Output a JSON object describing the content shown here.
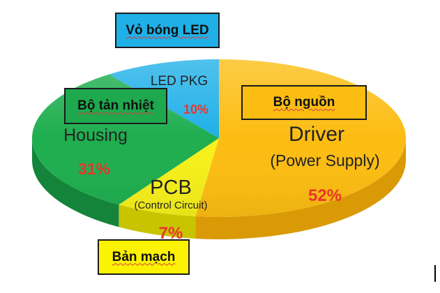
{
  "chart_data": {
    "type": "pie",
    "title": "",
    "slices": [
      {
        "label": "Driver",
        "sublabel": "(Power Supply)",
        "value": 52,
        "value_label": "52%",
        "color": "#fcbd12",
        "side_color": "#d99a05"
      },
      {
        "label": "PCB",
        "sublabel": "(Control Circuit)",
        "value": 7,
        "value_label": "7%",
        "color": "#f6f01a",
        "side_color": "#c9c400"
      },
      {
        "label": "Housing",
        "sublabel": "",
        "value": 31,
        "value_label": "31%",
        "color": "#1eae4f",
        "side_color": "#13843a"
      },
      {
        "label": "LED PKG",
        "sublabel": "",
        "value": 10,
        "value_label": "10%",
        "color": "#1fb0e8",
        "side_color": "#1389b8"
      }
    ],
    "value_label_color": "#e8362a",
    "annotations": [
      {
        "text": "Vỏ bóng LED",
        "color": "#1fb0e8"
      },
      {
        "text": "Bộ tản nhiệt",
        "color": "#1ea94e"
      },
      {
        "text": "Bộ nguồn",
        "color": "#fcbd12"
      },
      {
        "text": "Bản mạch",
        "color": "#fcf203"
      }
    ]
  }
}
